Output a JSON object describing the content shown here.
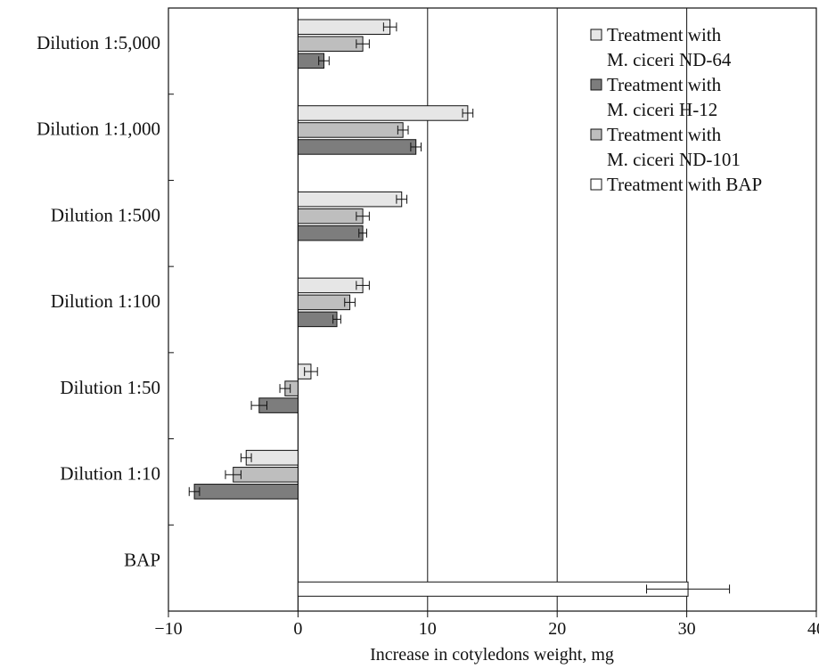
{
  "chart_data": {
    "type": "bar",
    "orientation": "horizontal",
    "xlabel": "Increase in cotyledons weight, mg",
    "ylabel": "",
    "xlim": [
      -10,
      40
    ],
    "x_ticks": [
      -10,
      0,
      10,
      20,
      30,
      40
    ],
    "x_tick_labels": [
      "−10",
      "0",
      "10",
      "20",
      "30",
      "40"
    ],
    "grid": "vertical lines at 10, 20, 30",
    "legend_position": "top-right",
    "categories": [
      "Dilution 1:5,000",
      "Dilution 1:1,000",
      "Dilution 1:500",
      "Dilution 1:100",
      "Dilution 1:50",
      "Dilution 1:10",
      "BAP"
    ],
    "legend": [
      {
        "label_lines": [
          "Treatment with",
          "M. ciceri ND-64"
        ],
        "color": "#e6e6e6"
      },
      {
        "label_lines": [
          "Treatment with",
          "M. ciceri H-12"
        ],
        "color": "#7d7d7d"
      },
      {
        "label_lines": [
          "Treatment with",
          "M. ciceri ND-101"
        ],
        "color": "#bebebe"
      },
      {
        "label_lines": [
          "Treatment with BAP"
        ],
        "color": "#ffffff"
      }
    ],
    "series": [
      {
        "name": "Treatment with M. ciceri ND-64",
        "color": "#e6e6e6",
        "values": [
          7.1,
          13.1,
          8.0,
          5.0,
          1.0,
          -4.0,
          null
        ],
        "errors": [
          0.5,
          0.4,
          0.4,
          0.5,
          0.5,
          0.4,
          null
        ]
      },
      {
        "name": "Treatment with M. ciceri ND-101",
        "color": "#bebebe",
        "values": [
          5.0,
          8.1,
          5.0,
          4.0,
          -1.0,
          -5.0,
          null
        ],
        "errors": [
          0.5,
          0.4,
          0.5,
          0.4,
          0.4,
          0.6,
          null
        ]
      },
      {
        "name": "Treatment with M. ciceri H-12",
        "color": "#7d7d7d",
        "values": [
          2.0,
          9.1,
          5.0,
          3.0,
          -3.0,
          -8.0,
          null
        ],
        "errors": [
          0.4,
          0.4,
          0.3,
          0.3,
          0.6,
          0.4,
          null
        ]
      },
      {
        "name": "Treatment with BAP",
        "color": "#ffffff",
        "values": [
          null,
          null,
          null,
          null,
          null,
          null,
          30.1
        ],
        "errors": [
          null,
          null,
          null,
          null,
          null,
          null,
          3.2
        ]
      }
    ]
  }
}
